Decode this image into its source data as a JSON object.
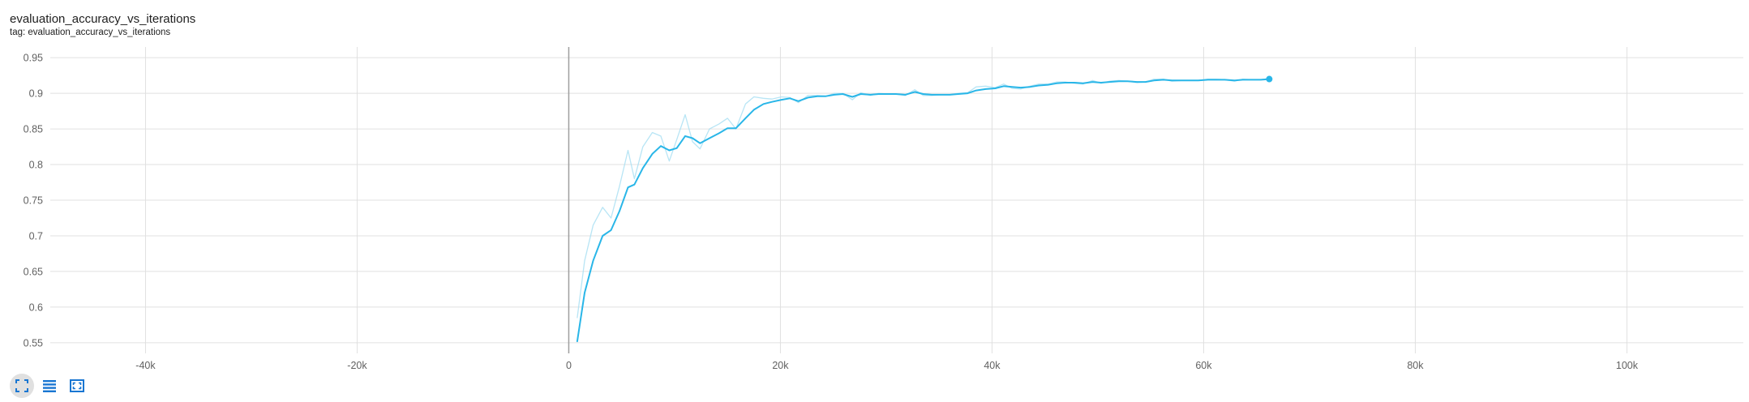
{
  "card": {
    "title": "evaluation_accuracy_vs_iterations",
    "tag": "tag: evaluation_accuracy_vs_iterations"
  },
  "toolbar": {
    "buttons": [
      {
        "icon": "fit-to-data-icon",
        "active": true
      },
      {
        "icon": "toggle-log-icon",
        "active": false
      },
      {
        "icon": "expand-chart-icon",
        "active": false
      }
    ]
  },
  "colors": {
    "series": "#29b6e8",
    "series_raw": "#a6def2",
    "grid": "#e0e0e0",
    "zero_axis": "#9e9e9e",
    "axis_text": "#616161"
  },
  "chart_data": {
    "type": "line",
    "title": "evaluation_accuracy_vs_iterations",
    "xlim": [
      -49000,
      111000
    ],
    "ylim": [
      0.535,
      0.965
    ],
    "x_ticks": [
      -40000,
      -20000,
      0,
      20000,
      40000,
      60000,
      80000,
      100000
    ],
    "x_tick_labels": [
      "-40k",
      "-20k",
      "0",
      "20k",
      "40k",
      "60k",
      "80k",
      "100k"
    ],
    "y_ticks": [
      0.55,
      0.6,
      0.65,
      0.7,
      0.75,
      0.8,
      0.85,
      0.9,
      0.95
    ],
    "y_tick_labels": [
      "0.55",
      "0.6",
      "0.65",
      "0.7",
      "0.75",
      "0.8",
      "0.85",
      "0.9",
      "0.95"
    ],
    "grid": true,
    "legend": "none",
    "series": [
      {
        "role": "smoothed",
        "x": [
          800,
          1500,
          2300,
          3200,
          4000,
          4800,
          5600,
          6200,
          7000,
          7900,
          8700,
          9500,
          10200,
          11000,
          11700,
          12400,
          13300,
          14200,
          15000,
          15800,
          16700,
          17500,
          18400,
          19200,
          20100,
          20900,
          21700,
          22600,
          23500,
          24300,
          25100,
          25900,
          26800,
          27600,
          28500,
          29300,
          30100,
          30900,
          31800,
          32700,
          33500,
          34300,
          35200,
          36000,
          36800,
          37700,
          38500,
          39400,
          40300,
          41100,
          41900,
          42700,
          43600,
          44400,
          45300,
          46100,
          46900,
          47800,
          48600,
          49500,
          50300,
          51100,
          52000,
          52800,
          53700,
          54500,
          55300,
          56200,
          57000,
          57900,
          58700,
          59500,
          60400,
          61200,
          62000,
          62900,
          63700,
          64500,
          65400,
          66200
        ],
        "y": [
          0.552,
          0.62,
          0.665,
          0.7,
          0.708,
          0.735,
          0.768,
          0.772,
          0.795,
          0.815,
          0.826,
          0.82,
          0.823,
          0.84,
          0.837,
          0.83,
          0.837,
          0.844,
          0.851,
          0.851,
          0.865,
          0.877,
          0.885,
          0.888,
          0.891,
          0.893,
          0.889,
          0.894,
          0.896,
          0.896,
          0.898,
          0.899,
          0.895,
          0.899,
          0.898,
          0.899,
          0.899,
          0.899,
          0.898,
          0.902,
          0.899,
          0.898,
          0.898,
          0.898,
          0.899,
          0.9,
          0.904,
          0.906,
          0.907,
          0.91,
          0.909,
          0.908,
          0.909,
          0.911,
          0.912,
          0.914,
          0.915,
          0.915,
          0.914,
          0.916,
          0.915,
          0.916,
          0.917,
          0.917,
          0.916,
          0.916,
          0.918,
          0.919,
          0.918,
          0.918,
          0.918,
          0.918,
          0.919,
          0.919,
          0.919,
          0.918,
          0.919,
          0.919,
          0.919,
          0.92
        ]
      },
      {
        "role": "raw",
        "x": [
          800,
          1500,
          2300,
          3200,
          4000,
          4800,
          5600,
          6200,
          7000,
          7900,
          8700,
          9500,
          10200,
          11000,
          11700,
          12400,
          13300,
          14200,
          15000,
          15800,
          16700,
          17500,
          18400,
          19200,
          20100,
          20900,
          21700,
          22600,
          23500,
          24300,
          25100,
          25900,
          26800,
          27600,
          28500,
          29300,
          30100,
          30900,
          31800,
          32700,
          33500,
          34300,
          35200,
          36000,
          36800,
          37700,
          38500,
          39400,
          40300,
          41100,
          41900,
          42700,
          43600,
          44400,
          45300,
          46100,
          46900,
          47800,
          48600,
          49500,
          50300,
          51100,
          52000,
          52800,
          53700,
          54500,
          55300,
          56200,
          57000,
          57900,
          58700,
          59500,
          60400,
          61200,
          62000,
          62900,
          63700,
          64500,
          65400,
          66200
        ],
        "y": [
          0.585,
          0.665,
          0.715,
          0.74,
          0.725,
          0.77,
          0.82,
          0.78,
          0.825,
          0.845,
          0.84,
          0.805,
          0.835,
          0.87,
          0.832,
          0.822,
          0.85,
          0.857,
          0.865,
          0.85,
          0.885,
          0.895,
          0.893,
          0.892,
          0.895,
          0.894,
          0.887,
          0.897,
          0.897,
          0.896,
          0.9,
          0.9,
          0.891,
          0.901,
          0.897,
          0.9,
          0.899,
          0.899,
          0.897,
          0.905,
          0.897,
          0.897,
          0.898,
          0.898,
          0.9,
          0.901,
          0.909,
          0.91,
          0.908,
          0.913,
          0.907,
          0.906,
          0.91,
          0.913,
          0.913,
          0.916,
          0.916,
          0.914,
          0.913,
          0.918,
          0.914,
          0.917,
          0.918,
          0.917,
          0.915,
          0.916,
          0.92,
          0.92,
          0.917,
          0.918,
          0.918,
          0.918,
          0.92,
          0.92,
          0.919,
          0.917,
          0.92,
          0.919,
          0.919,
          0.921
        ]
      }
    ]
  }
}
